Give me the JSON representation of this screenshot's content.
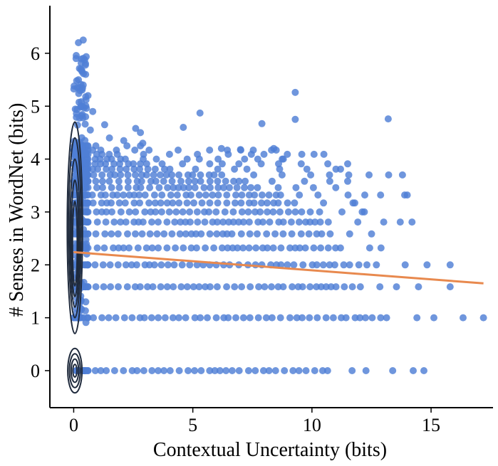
{
  "chart_data": {
    "type": "scatter",
    "title": "",
    "xlabel": "Contextual Uncertainty (bits)",
    "ylabel": "# Senses in WordNet (bits)",
    "xlim": [
      -1.0,
      17.6
    ],
    "ylim": [
      -0.7,
      6.9
    ],
    "xticks": [
      0,
      5,
      10,
      15
    ],
    "yticks": [
      0,
      1,
      2,
      3,
      4,
      5,
      6
    ],
    "xtick_labels": [
      "0",
      "5",
      "10",
      "15"
    ],
    "ytick_labels": [
      "0",
      "1",
      "2",
      "3",
      "4",
      "5",
      "6"
    ],
    "point_color": "#4f7fd6",
    "regression_color": "#e8894e",
    "contour_color": "#1f2a3c",
    "regression_line": {
      "x": [
        0.0,
        17.2
      ],
      "y": [
        2.24,
        1.65
      ]
    },
    "bands": [
      {
        "y": 0.0,
        "xmax": 14.7,
        "dense_until": 10.5
      },
      {
        "y": 1.0,
        "xmax": 17.2,
        "dense_until": 13.0
      },
      {
        "y": 1.585,
        "xmax": 15.8,
        "dense_until": 12.0
      },
      {
        "y": 2.0,
        "xmax": 15.8,
        "dense_until": 12.5
      },
      {
        "y": 2.32,
        "xmax": 12.9,
        "dense_until": 11.0
      },
      {
        "y": 2.585,
        "xmax": 12.5,
        "dense_until": 10.5
      },
      {
        "y": 2.81,
        "xmax": 14.2,
        "dense_until": 10.5
      },
      {
        "y": 3.0,
        "xmax": 12.2,
        "dense_until": 10.0
      },
      {
        "y": 3.17,
        "xmax": 11.8,
        "dense_until": 9.0
      },
      {
        "y": 3.32,
        "xmax": 14.0,
        "dense_until": 8.5
      },
      {
        "y": 3.46,
        "xmax": 11.0,
        "dense_until": 7.5
      },
      {
        "y": 3.58,
        "xmax": 11.5,
        "dense_until": 7.0
      },
      {
        "y": 3.7,
        "xmax": 13.8,
        "dense_until": 6.0
      },
      {
        "y": 3.81,
        "xmax": 11.2,
        "dense_until": 4.0
      },
      {
        "y": 3.91,
        "xmax": 11.5,
        "dense_until": 3.0
      },
      {
        "y": 4.0,
        "xmax": 8.8,
        "dense_until": 2.0
      },
      {
        "y": 4.09,
        "xmax": 10.5,
        "dense_until": 1.5
      },
      {
        "y": 4.17,
        "xmax": 8.5,
        "dense_until": 1.0
      },
      {
        "y": 4.25,
        "xmax": 2.8,
        "dense_until": 0.7
      }
    ],
    "sparse_points": [
      {
        "x": 0.2,
        "y": 6.2
      },
      {
        "x": 0.4,
        "y": 6.25
      },
      {
        "x": 0.1,
        "y": 5.9
      },
      {
        "x": 0.3,
        "y": 5.7
      },
      {
        "x": 0.5,
        "y": 5.6
      },
      {
        "x": 0.2,
        "y": 5.5
      },
      {
        "x": 0.4,
        "y": 5.4
      },
      {
        "x": 0.6,
        "y": 5.2
      },
      {
        "x": 0.3,
        "y": 5.0
      },
      {
        "x": 0.8,
        "y": 4.9
      },
      {
        "x": 0.5,
        "y": 4.8
      },
      {
        "x": 1.3,
        "y": 4.65
      },
      {
        "x": 0.7,
        "y": 4.55
      },
      {
        "x": 1.5,
        "y": 4.4
      },
      {
        "x": 2.6,
        "y": 4.58
      },
      {
        "x": 2.8,
        "y": 4.5
      },
      {
        "x": 4.6,
        "y": 4.6
      },
      {
        "x": 5.3,
        "y": 4.87
      },
      {
        "x": 7.9,
        "y": 4.67
      },
      {
        "x": 9.3,
        "y": 4.75
      },
      {
        "x": 9.3,
        "y": 5.26
      },
      {
        "x": 13.2,
        "y": 4.76
      },
      {
        "x": 2.9,
        "y": 4.3
      },
      {
        "x": 2.1,
        "y": 4.35
      },
      {
        "x": 6.2,
        "y": 4.2
      },
      {
        "x": 7.0,
        "y": 4.18
      },
      {
        "x": 8.4,
        "y": 4.2
      }
    ],
    "point_count_note": "thousands of overlapping points on discrete log2 bands"
  }
}
